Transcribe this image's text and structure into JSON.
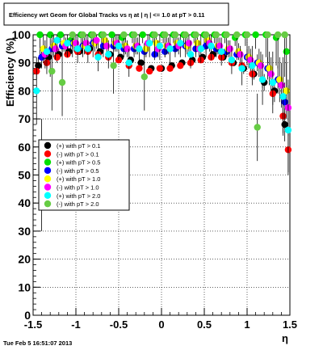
{
  "chart_data": {
    "type": "scatter",
    "title": "Efficiency wrt Geom for Global Tracks vs  η at | η | <= 1.0 at pT > 0.11",
    "ylabel": "Efficiency (%)",
    "xlabel": "η",
    "xlim": [
      -1.5,
      1.5
    ],
    "ylim": [
      0,
      100
    ],
    "x_ticks": [
      "-1.5",
      "-1",
      "-0.5",
      "0",
      "0.5",
      "1",
      "1.5"
    ],
    "y_ticks": [
      "0",
      "10",
      "20",
      "30",
      "40",
      "50",
      "60",
      "70",
      "80",
      "90",
      "100"
    ],
    "grid": true,
    "legend_position": "middle-left",
    "footer": "Tue Feb  5 16:51:07 2013",
    "series": [
      {
        "name": "(+) with pT > 0.1",
        "color": "#000000",
        "x": [
          -1.44,
          -1.32,
          -1.2,
          -1.08,
          -0.96,
          -0.84,
          -0.72,
          -0.6,
          -0.48,
          -0.36,
          -0.24,
          -0.12,
          0,
          0.12,
          0.24,
          0.36,
          0.48,
          0.6,
          0.72,
          0.84,
          0.96,
          1.08,
          1.2,
          1.32,
          1.44
        ],
        "y": [
          89,
          92,
          93,
          94,
          94,
          95,
          94,
          93,
          92,
          91,
          90,
          88,
          88,
          89,
          90,
          91,
          92,
          93,
          92,
          90,
          88,
          86,
          83,
          80,
          68
        ],
        "errors": [
          3,
          2,
          2,
          1,
          1,
          1,
          1,
          1,
          1,
          1,
          1,
          1,
          1,
          1,
          1,
          1,
          1,
          1,
          1,
          1,
          2,
          2,
          3,
          4,
          6
        ]
      },
      {
        "name": "(-) with pT > 0.1",
        "color": "#ff0000",
        "x": [
          -1.46,
          -1.34,
          -1.22,
          -1.1,
          -0.98,
          -0.86,
          -0.74,
          -0.62,
          -0.5,
          -0.38,
          -0.26,
          -0.14,
          -0.02,
          0.1,
          0.22,
          0.34,
          0.46,
          0.58,
          0.7,
          0.82,
          0.94,
          1.06,
          1.18,
          1.3,
          1.42,
          1.48
        ],
        "y": [
          87,
          90,
          92,
          93,
          94,
          94,
          93,
          92,
          91,
          89,
          88,
          87,
          88,
          88,
          89,
          90,
          91,
          92,
          92,
          90,
          89,
          86,
          84,
          79,
          71,
          59
        ],
        "errors": [
          3,
          2,
          2,
          1,
          1,
          1,
          1,
          1,
          1,
          1,
          1,
          1,
          1,
          1,
          1,
          1,
          1,
          1,
          1,
          1,
          2,
          2,
          3,
          4,
          6,
          8
        ]
      },
      {
        "name": "(+) with pT > 0.5",
        "color": "#00e000",
        "x": [
          -1.42,
          -1.3,
          -1.18,
          -1.06,
          -0.94,
          -0.82,
          -0.7,
          -0.58,
          -0.46,
          -0.34,
          -0.22,
          -0.1,
          0.02,
          0.14,
          0.26,
          0.38,
          0.5,
          0.62,
          0.74,
          0.86,
          0.98,
          1.1,
          1.22,
          1.34,
          1.46
        ],
        "y": [
          100,
          100,
          100,
          98,
          100,
          100,
          100,
          100,
          99,
          100,
          100,
          100,
          100,
          100,
          100,
          100,
          100,
          100,
          100,
          99,
          100,
          100,
          100,
          99,
          94
        ],
        "errors": [
          8,
          15,
          5,
          4,
          3,
          4,
          3,
          3,
          3,
          3,
          3,
          3,
          3,
          3,
          3,
          3,
          3,
          3,
          3,
          3,
          4,
          5,
          8,
          10,
          15
        ]
      },
      {
        "name": "(-) with pT > 0.5",
        "color": "#0000ff",
        "x": [
          -1.4,
          -1.28,
          -1.16,
          -1.04,
          -0.92,
          -0.8,
          -0.68,
          -0.56,
          -0.44,
          -0.32,
          -0.2,
          -0.08,
          0.04,
          0.16,
          0.28,
          0.4,
          0.52,
          0.64,
          0.76,
          0.88,
          1.0,
          1.12,
          1.24,
          1.36,
          1.44
        ],
        "y": [
          92,
          95,
          96,
          97,
          96,
          97,
          96,
          96,
          95,
          95,
          94,
          93,
          94,
          95,
          96,
          95,
          96,
          95,
          94,
          93,
          92,
          90,
          88,
          84,
          76
        ],
        "errors": [
          4,
          3,
          2,
          2,
          2,
          2,
          2,
          2,
          2,
          2,
          2,
          2,
          2,
          2,
          2,
          2,
          2,
          2,
          2,
          2,
          3,
          3,
          4,
          5,
          7
        ]
      },
      {
        "name": "(+) with pT > 1.0",
        "color": "#ffff00",
        "x": [
          -1.38,
          -1.26,
          -1.14,
          -1.02,
          -0.9,
          -0.78,
          -0.66,
          -0.54,
          -0.42,
          -0.3,
          -0.18,
          -0.06,
          0.06,
          0.18,
          0.3,
          0.42,
          0.54,
          0.66,
          0.78,
          0.9,
          1.02,
          1.14,
          1.26,
          1.38,
          1.46
        ],
        "y": [
          95,
          96,
          97,
          97,
          96,
          97,
          98,
          97,
          96,
          96,
          95,
          97,
          96,
          97,
          96,
          97,
          98,
          96,
          95,
          94,
          92,
          90,
          88,
          84,
          80
        ],
        "errors": [
          5,
          4,
          3,
          3,
          3,
          3,
          3,
          3,
          3,
          3,
          3,
          3,
          3,
          3,
          3,
          3,
          3,
          3,
          3,
          3,
          4,
          5,
          6,
          8,
          10
        ]
      },
      {
        "name": "(-) with pT > 1.0",
        "color": "#ff00ff",
        "x": [
          -1.36,
          -1.24,
          -1.12,
          -1.0,
          -0.88,
          -0.76,
          -0.64,
          -0.52,
          -0.4,
          -0.28,
          -0.16,
          -0.04,
          0.08,
          0.2,
          0.32,
          0.44,
          0.56,
          0.68,
          0.8,
          0.92,
          1.04,
          1.16,
          1.28,
          1.4,
          1.48
        ],
        "y": [
          93,
          95,
          96,
          97,
          97,
          98,
          96,
          97,
          95,
          96,
          97,
          95,
          96,
          96,
          97,
          95,
          97,
          96,
          95,
          93,
          91,
          89,
          86,
          82,
          74
        ],
        "errors": [
          5,
          4,
          3,
          3,
          3,
          3,
          3,
          3,
          3,
          3,
          3,
          3,
          3,
          3,
          3,
          3,
          3,
          3,
          3,
          3,
          4,
          5,
          6,
          8,
          10
        ]
      },
      {
        "name": "(+) with pT > 2.0",
        "color": "#00ffff",
        "x": [
          -1.46,
          -1.34,
          -1.22,
          -1.1,
          -0.98,
          -0.86,
          -0.74,
          -0.62,
          -0.5,
          -0.38,
          -0.26,
          -0.14,
          -0.02,
          0.1,
          0.22,
          0.34,
          0.46,
          0.58,
          0.7,
          0.82,
          0.94,
          1.06,
          1.18,
          1.3,
          1.42,
          1.48
        ],
        "y": [
          80,
          94,
          98,
          97,
          95,
          95,
          92,
          93,
          96,
          90,
          95,
          97,
          96,
          95,
          97,
          93,
          95,
          96,
          94,
          91,
          88,
          89,
          84,
          83,
          78,
          66
        ],
        "errors": [
          12,
          8,
          5,
          5,
          5,
          5,
          5,
          5,
          5,
          5,
          5,
          5,
          5,
          5,
          5,
          5,
          5,
          5,
          5,
          5,
          6,
          7,
          9,
          11,
          14,
          16
        ]
      },
      {
        "name": "(-) with pT > 2.0",
        "color": "#66cc44",
        "x": [
          -1.4,
          -1.28,
          -1.16,
          -1.04,
          -0.92,
          -0.8,
          -0.68,
          -0.56,
          -0.44,
          -0.32,
          -0.2,
          -0.08,
          0.04,
          0.16,
          0.28,
          0.4,
          0.52,
          0.64,
          0.76,
          0.88,
          1.0,
          1.12,
          1.24,
          1.36,
          1.44
        ],
        "y": [
          50,
          87,
          83,
          100,
          100,
          100,
          100,
          89,
          100,
          100,
          85,
          100,
          100,
          100,
          100,
          100,
          100,
          100,
          100,
          100,
          100,
          67,
          100,
          100,
          100
        ],
        "errors": [
          20,
          14,
          12,
          8,
          8,
          8,
          8,
          10,
          8,
          8,
          12,
          8,
          8,
          8,
          8,
          8,
          8,
          8,
          8,
          8,
          9,
          12,
          10,
          12,
          15
        ]
      }
    ]
  }
}
